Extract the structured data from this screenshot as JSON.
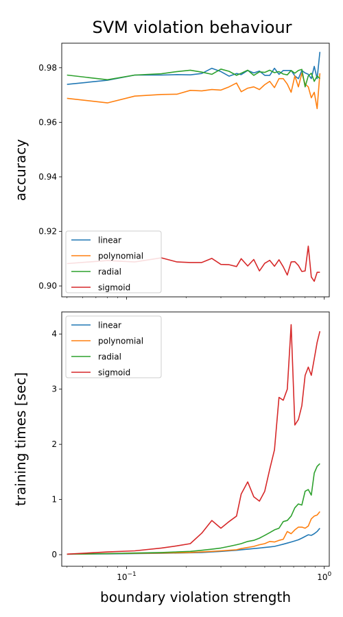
{
  "chart_data": {
    "title": "SVM violation behaviour",
    "xlabel": "boundary violation strength",
    "x_scale": "log",
    "xlim": [
      0.047,
      1.06
    ],
    "x": [
      0.05,
      0.08,
      0.11,
      0.15,
      0.18,
      0.21,
      0.24,
      0.27,
      0.3,
      0.33,
      0.36,
      0.38,
      0.41,
      0.44,
      0.47,
      0.5,
      0.53,
      0.56,
      0.59,
      0.62,
      0.65,
      0.68,
      0.71,
      0.74,
      0.77,
      0.8,
      0.83,
      0.86,
      0.89,
      0.92,
      0.95
    ],
    "x_ticks": [
      {
        "value": 0.1,
        "base": "10",
        "exp": "−1"
      },
      {
        "value": 1,
        "base": "10",
        "exp": "0"
      }
    ],
    "legend_entries": [
      "linear",
      "polynomial",
      "radial",
      "sigmoid"
    ],
    "colors": {
      "linear": "#1f77b4",
      "polynomial": "#ff7f0e",
      "radial": "#2ca02c",
      "sigmoid": "#d62728"
    },
    "subplots": [
      {
        "ylabel": "accuracy",
        "ylim": [
          0.896,
          0.989
        ],
        "y_ticks": [
          0.9,
          0.92,
          0.94,
          0.96,
          0.98
        ],
        "y_tick_labels": [
          "0.90",
          "0.92",
          "0.94",
          "0.96",
          "0.98"
        ],
        "legend_position": "lower-left",
        "series": [
          {
            "name": "linear",
            "values": [
              0.9739,
              0.9754,
              0.9773,
              0.9773,
              0.9775,
              0.9774,
              0.9779,
              0.9798,
              0.9786,
              0.9769,
              0.9779,
              0.9775,
              0.979,
              0.9781,
              0.9788,
              0.9772,
              0.9772,
              0.9798,
              0.9776,
              0.979,
              0.979,
              0.979,
              0.977,
              0.976,
              0.979,
              0.9781,
              0.9776,
              0.976,
              0.9805,
              0.976,
              0.9858
            ]
          },
          {
            "name": "polynomial",
            "values": [
              0.9688,
              0.9671,
              0.9696,
              0.9702,
              0.9703,
              0.9717,
              0.9715,
              0.972,
              0.9718,
              0.973,
              0.9744,
              0.9712,
              0.9725,
              0.973,
              0.972,
              0.9738,
              0.975,
              0.9727,
              0.976,
              0.976,
              0.974,
              0.971,
              0.977,
              0.973,
              0.978,
              0.974,
              0.973,
              0.969,
              0.971,
              0.965,
              0.978
            ]
          },
          {
            "name": "radial",
            "values": [
              0.9773,
              0.9756,
              0.9773,
              0.9778,
              0.9786,
              0.9791,
              0.9784,
              0.9776,
              0.9795,
              0.9787,
              0.9772,
              0.978,
              0.9791,
              0.9772,
              0.9785,
              0.9783,
              0.9791,
              0.9782,
              0.9786,
              0.9777,
              0.9774,
              0.979,
              0.978,
              0.979,
              0.9794,
              0.973,
              0.977,
              0.978,
              0.975,
              0.977,
              0.976
            ]
          },
          {
            "name": "sigmoid",
            "values": [
              0.9082,
              0.9093,
              0.9088,
              0.9103,
              0.9088,
              0.9086,
              0.9086,
              0.9101,
              0.9079,
              0.9078,
              0.9071,
              0.91,
              0.9073,
              0.9097,
              0.9055,
              0.9083,
              0.9094,
              0.9072,
              0.9096,
              0.907,
              0.904,
              0.9088,
              0.9089,
              0.9075,
              0.9053,
              0.9055,
              0.9146,
              0.9033,
              0.9017,
              0.905,
              0.905
            ]
          }
        ]
      },
      {
        "ylabel": "training times [sec]",
        "ylim": [
          -0.21,
          4.4
        ],
        "y_ticks": [
          0,
          1,
          2,
          3,
          4
        ],
        "y_tick_labels": [
          "0",
          "1",
          "2",
          "3",
          "4"
        ],
        "legend_position": "upper-left",
        "series": [
          {
            "name": "linear",
            "values": [
              0.01,
              0.015,
              0.02,
              0.025,
              0.03,
              0.035,
              0.04,
              0.05,
              0.06,
              0.07,
              0.08,
              0.09,
              0.1,
              0.11,
              0.12,
              0.13,
              0.14,
              0.15,
              0.17,
              0.19,
              0.21,
              0.23,
              0.25,
              0.27,
              0.3,
              0.33,
              0.36,
              0.35,
              0.38,
              0.42,
              0.48
            ]
          },
          {
            "name": "polynomial",
            "values": [
              0.01,
              0.02,
              0.025,
              0.03,
              0.035,
              0.04,
              0.05,
              0.06,
              0.07,
              0.08,
              0.09,
              0.11,
              0.13,
              0.15,
              0.18,
              0.2,
              0.24,
              0.23,
              0.26,
              0.28,
              0.42,
              0.38,
              0.45,
              0.5,
              0.5,
              0.48,
              0.52,
              0.65,
              0.7,
              0.72,
              0.78
            ]
          },
          {
            "name": "radial",
            "values": [
              0.01,
              0.02,
              0.03,
              0.04,
              0.05,
              0.06,
              0.08,
              0.1,
              0.12,
              0.15,
              0.18,
              0.2,
              0.24,
              0.26,
              0.3,
              0.35,
              0.4,
              0.45,
              0.48,
              0.6,
              0.62,
              0.7,
              0.85,
              0.92,
              0.9,
              1.15,
              1.18,
              1.08,
              1.48,
              1.6,
              1.65
            ]
          },
          {
            "name": "sigmoid",
            "values": [
              0.01,
              0.05,
              0.07,
              0.12,
              0.16,
              0.2,
              0.39,
              0.62,
              0.48,
              0.6,
              0.7,
              1.1,
              1.32,
              1.05,
              0.97,
              1.15,
              1.55,
              1.9,
              2.85,
              2.8,
              3.0,
              4.17,
              2.35,
              2.45,
              2.7,
              3.25,
              3.4,
              3.25,
              3.55,
              3.85,
              4.05
            ]
          }
        ]
      }
    ]
  }
}
